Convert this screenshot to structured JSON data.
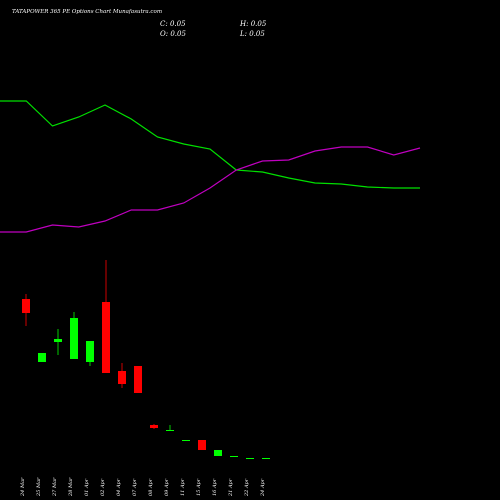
{
  "chart_data": [
    {
      "type": "candlestick",
      "title": "TATAPOWER 365 PE Options Chart Munafasutra.com",
      "info": [
        "C: 0.05",
        "H: 0.05",
        "O: 0.05",
        "L: 0.05"
      ],
      "categories": [
        "24 Mar",
        "25 Mar",
        "27 Mar",
        "28 Mar",
        "01 Apr",
        "02 Apr",
        "04 Apr",
        "07 Apr",
        "08 Apr",
        "09 Apr",
        "11 Apr",
        "15 Apr",
        "16 Apr",
        "21 Apr",
        "22 Apr",
        "24 Apr"
      ],
      "open": [
        17.1,
        10.8,
        12.8,
        11.1,
        10.8,
        16.8,
        9.9,
        10.4,
        4.5,
        3.9,
        2.9,
        3.0,
        1.4,
        1.3,
        1.2,
        1.2
      ],
      "high": [
        17.6,
        11.7,
        14.1,
        15.8,
        12.9,
        21.0,
        10.7,
        10.4,
        4.6,
        4.5,
        3.0,
        3.0,
        2.0,
        1.4,
        1.2,
        1.2
      ],
      "low": [
        14.4,
        10.8,
        11.5,
        11.1,
        10.4,
        9.7,
        8.2,
        7.7,
        4.1,
        3.9,
        2.9,
        2.0,
        1.4,
        1.3,
        1.2,
        1.2
      ],
      "close": [
        15.7,
        11.7,
        13.1,
        15.2,
        12.9,
        9.7,
        8.6,
        7.7,
        4.2,
        4.0,
        3.0,
        2.0,
        2.0,
        1.4,
        1.2,
        1.2
      ],
      "up_color": "#00ff00",
      "down_color": "#ff0000",
      "ylim": [
        0,
        22
      ]
    },
    {
      "type": "line",
      "series": [
        {
          "color": "#00e000",
          "values": [
            149,
            149,
            124,
            133,
            145,
            131,
            113,
            106,
            101,
            80,
            78,
            72,
            67,
            66,
            63,
            62,
            62
          ]
        },
        {
          "color": "#c000c0",
          "values": [
            18,
            18,
            25,
            23,
            29,
            40,
            40,
            47,
            62,
            80,
            89,
            90,
            99,
            103,
            103,
            95,
            102
          ]
        }
      ],
      "ylim": [
        0,
        250
      ]
    }
  ]
}
